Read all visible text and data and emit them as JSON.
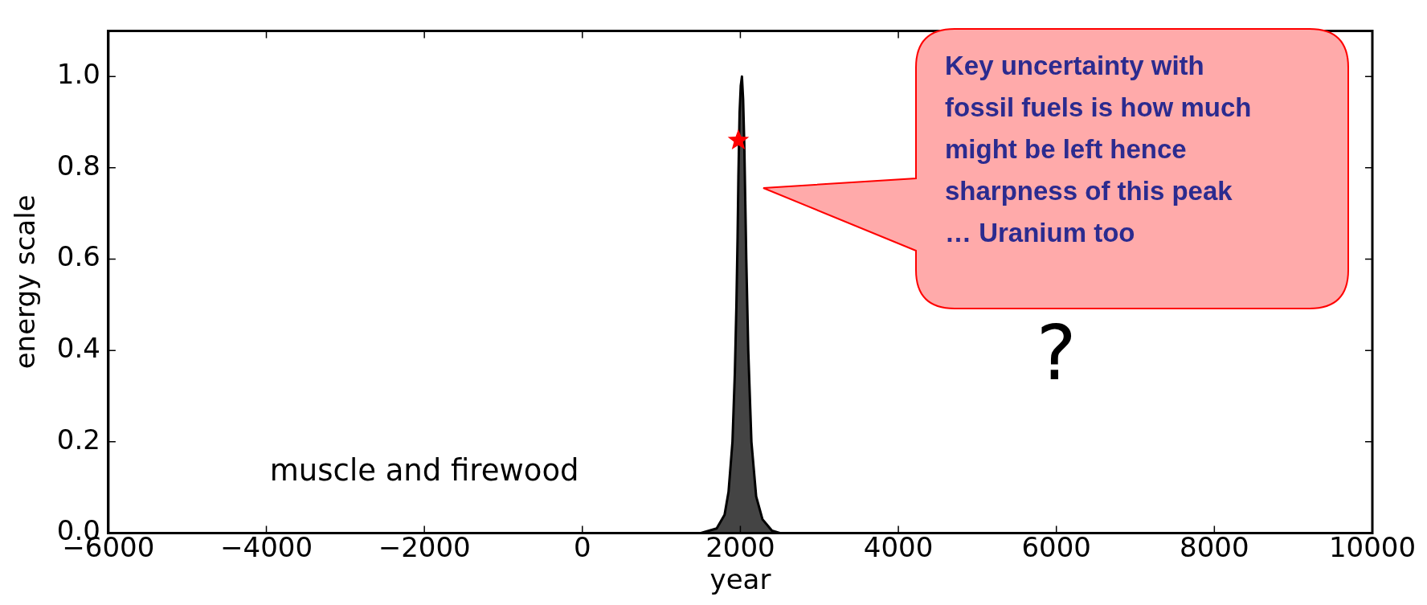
{
  "chart_data": {
    "type": "area",
    "xlabel": "year",
    "ylabel": "energy scale",
    "xlim": [
      -6000,
      10000
    ],
    "ylim": [
      0,
      1.1
    ],
    "xticks": [
      {
        "value": -6000,
        "label": "−6000"
      },
      {
        "value": -4000,
        "label": "−4000"
      },
      {
        "value": -2000,
        "label": "−2000"
      },
      0,
      2000,
      4000,
      6000,
      8000,
      10000
    ],
    "yticks": [
      {
        "value": 0,
        "label": "0.0"
      },
      {
        "value": 0.2,
        "label": "0.2"
      },
      {
        "value": 0.4,
        "label": "0.4"
      },
      {
        "value": 0.6,
        "label": "0.6"
      },
      {
        "value": 0.8,
        "label": "0.8"
      },
      {
        "value": 1,
        "label": "1.0"
      }
    ],
    "grid": false,
    "series": [
      {
        "color": "#444444",
        "x": [
          1500,
          1700,
          1800,
          1850,
          1900,
          1930,
          1950,
          1965,
          1975,
          1990,
          2005,
          2020,
          2035,
          2050,
          2075,
          2100,
          2140,
          2200,
          2280,
          2400,
          2500
        ],
        "values": [
          0,
          0.01,
          0.04,
          0.09,
          0.2,
          0.35,
          0.5,
          0.65,
          0.78,
          0.92,
          0.98,
          1.0,
          0.95,
          0.85,
          0.6,
          0.4,
          0.2,
          0.08,
          0.03,
          0.005,
          0
        ]
      },
      {
        "type": "scatter",
        "color": "#ff0000",
        "marker": "star",
        "x": [
          1975
        ],
        "values": [
          0.86
        ]
      }
    ],
    "annotations": [
      "Key uncertainty with fossil fuels is how much might be left hence sharpness of this peak … Uranium too",
      "muscle and firewood",
      "?"
    ]
  }
}
